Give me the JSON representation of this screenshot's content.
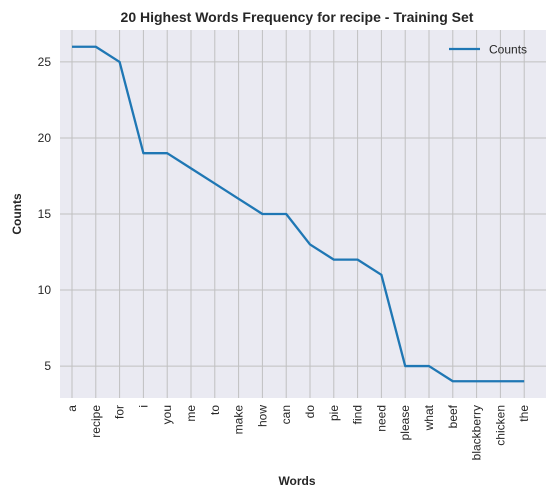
{
  "chart_data": {
    "type": "line",
    "title": "20 Highest Words Frequency for recipe - Training Set",
    "xlabel": "Words",
    "ylabel": "Counts",
    "categories": [
      "a",
      "recipe",
      "for",
      "i",
      "you",
      "me",
      "to",
      "make",
      "how",
      "can",
      "do",
      "pie",
      "find",
      "need",
      "please",
      "what",
      "beef",
      "blackberry",
      "chicken",
      "the"
    ],
    "series": [
      {
        "name": "Counts",
        "values": [
          26,
          26,
          25,
          19,
          19,
          18,
          17,
          16,
          15,
          15,
          13,
          12,
          12,
          11,
          5,
          5,
          4,
          4,
          4,
          4
        ]
      }
    ],
    "yticks": [
      5,
      10,
      15,
      20,
      25
    ],
    "ylim": [
      2.9,
      27.1
    ],
    "grid": true,
    "legend_position": "top-right",
    "colors": {
      "line": "#1f77b4",
      "plot_bg": "#eaeaf2",
      "grid": "#c0c0c0"
    }
  }
}
